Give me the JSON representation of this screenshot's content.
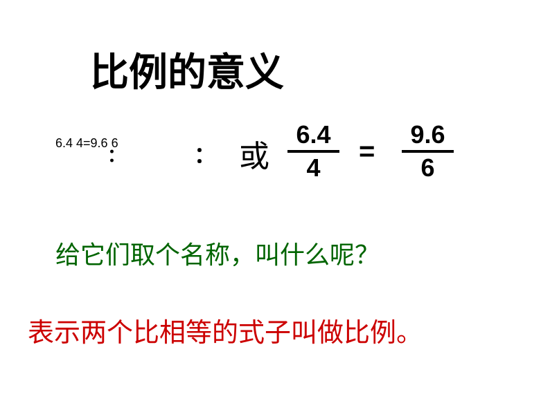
{
  "title": "比例的意义",
  "equation": {
    "ratio_text": "6.4   4=9.6   6",
    "colon1": "：",
    "colon2": "：",
    "or_text": "或",
    "frac1": {
      "numerator": "6.4",
      "denominator": "4"
    },
    "equals": "=",
    "frac2": {
      "numerator": "9.6",
      "denominator": "6"
    }
  },
  "question": "给它们取个名称，叫什么呢？",
  "definition": "表示两个比相等的式子叫做比例。",
  "colors": {
    "title_color": "#000000",
    "question_color": "#006400",
    "definition_color": "#cc0000",
    "background": "#ffffff"
  }
}
